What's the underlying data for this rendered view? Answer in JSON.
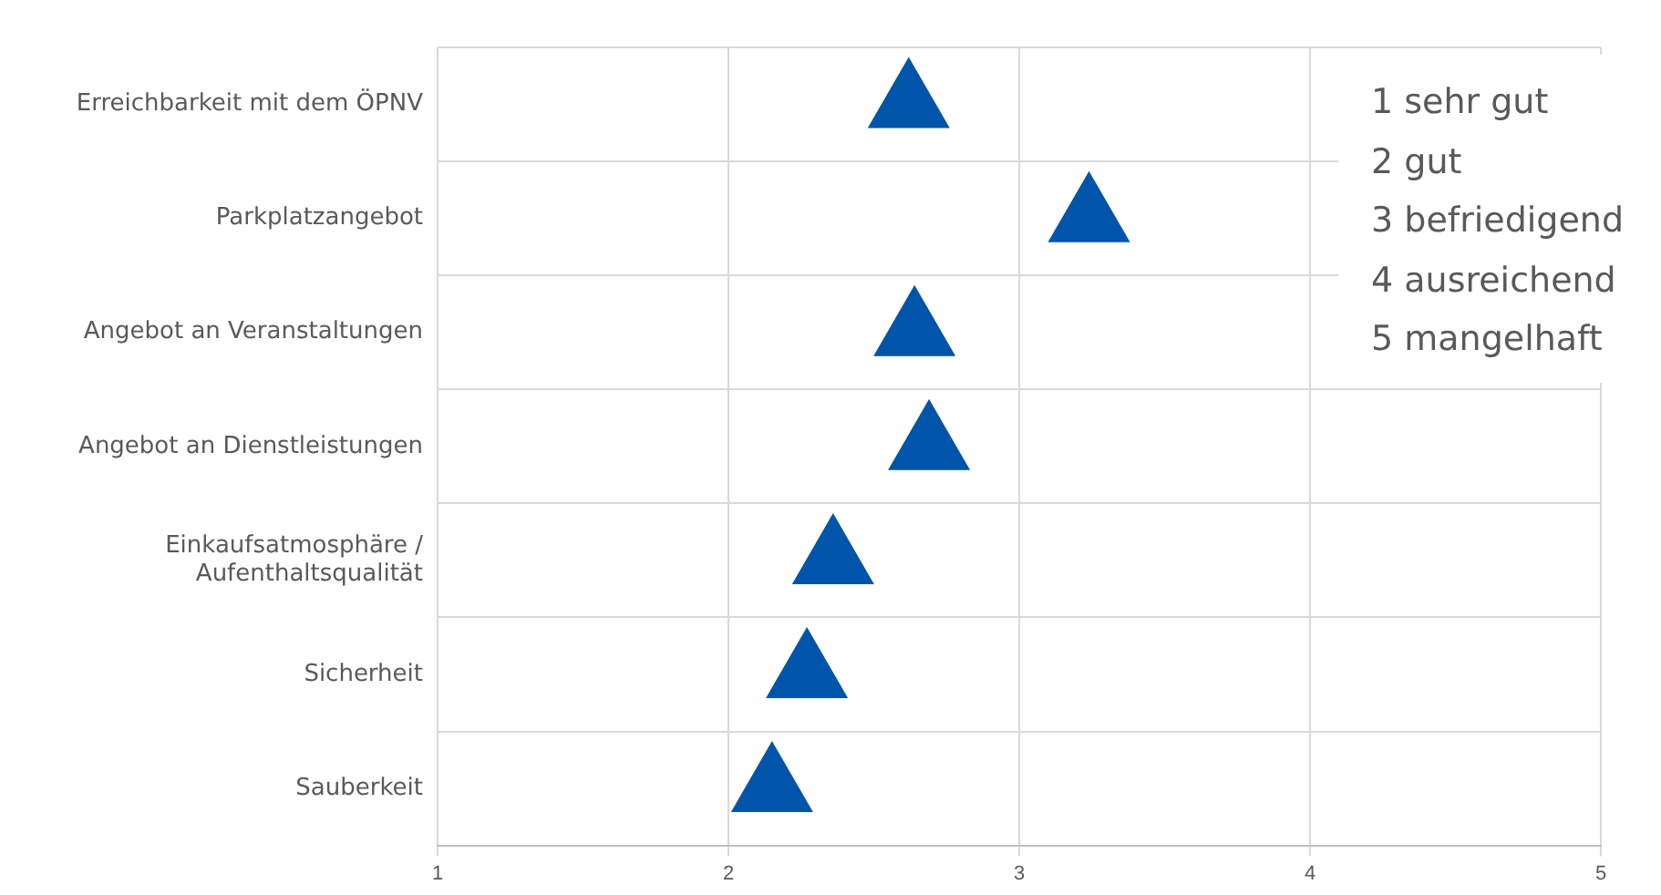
{
  "chart_data": {
    "type": "scatter",
    "orientation": "horizontal",
    "categories": [
      "Erreichbarkeit mit dem ÖPNV",
      "Parkplatzangebot",
      "Angebot an Veranstaltungen",
      "Angebot an Dienstleistungen",
      "Einkaufsatmosphäre /\nAufenthaltsqualität",
      "Sicherheit",
      "Sauberkeit"
    ],
    "values": [
      2.62,
      3.24,
      2.64,
      2.69,
      2.36,
      2.27,
      2.15
    ],
    "color": "#0055aa",
    "marker": "triangle",
    "xlim": [
      1,
      5
    ],
    "xticks": [
      1,
      2,
      3,
      4,
      5
    ],
    "grid": true,
    "legend": false,
    "annotations": [
      "1 sehr gut",
      "2 gut",
      "3 befriedigend",
      "4 ausreichend",
      "5 mangelhaft"
    ]
  }
}
